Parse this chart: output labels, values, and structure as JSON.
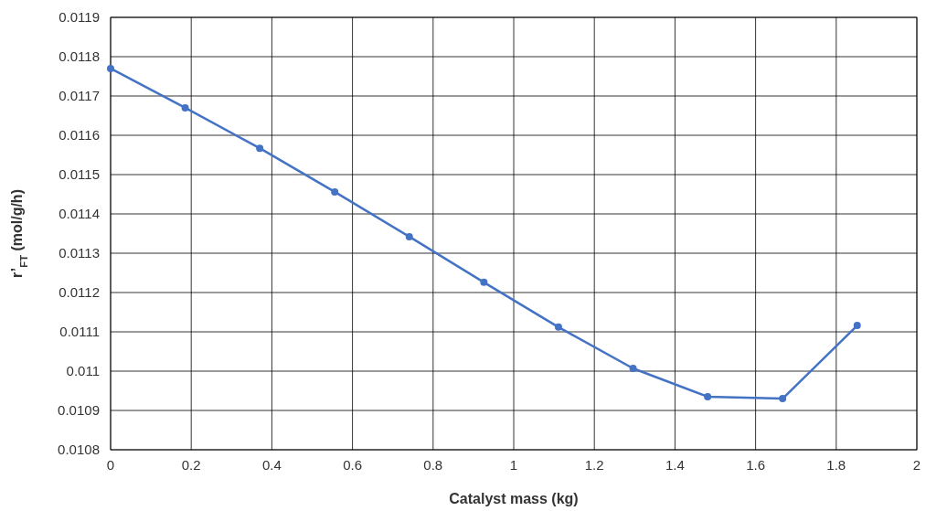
{
  "chart_data": {
    "type": "line",
    "xlabel": "Catalyst mass (kg)",
    "ylabel": "r’$_{FT}$ (mol/g/h)",
    "x": [
      0,
      0.185,
      0.37,
      0.556,
      0.741,
      0.926,
      1.111,
      1.296,
      1.481,
      1.667,
      1.852
    ],
    "series": [
      {
        "color": "#4472c4",
        "values": [
          0.01177,
          0.01167,
          0.011567,
          0.011456,
          0.011342,
          0.011226,
          0.011112,
          0.011007,
          0.010935,
          0.01093,
          0.011116
        ]
      }
    ],
    "xlim": [
      0,
      2
    ],
    "xticks": [
      0,
      0.2,
      0.4,
      0.6,
      0.8,
      1,
      1.2,
      1.4,
      1.6,
      1.8,
      2
    ],
    "ylim": [
      0.0108,
      0.0119
    ],
    "yticks": [
      0.0108,
      0.0109,
      0.011,
      0.0111,
      0.0112,
      0.0113,
      0.0114,
      0.0115,
      0.0116,
      0.0117,
      0.0118,
      0.0119
    ],
    "grid": true,
    "marker": "circle",
    "line_style": "solid"
  }
}
